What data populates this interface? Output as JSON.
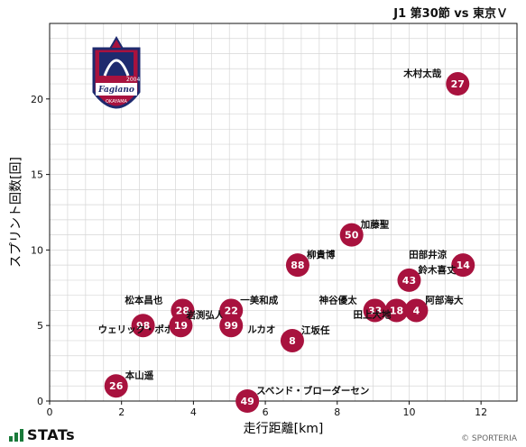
{
  "header": {
    "match": "J1 第30節 vs 東京Ｖ"
  },
  "footer": {
    "brand": "STATs",
    "copyright": "© SPORTERIA"
  },
  "emblem": {
    "year": "2004",
    "name": "Fagiano",
    "sub": "OKAYAMA"
  },
  "colors": {
    "marker": "#a8123e",
    "grid": "#d6d6d6",
    "stats_green": "#1a7a3a"
  },
  "chart_data": {
    "type": "scatter",
    "xlabel": "走行距離[km]",
    "ylabel": "スプリント回数[回]",
    "xlim": [
      0,
      13
    ],
    "ylim": [
      0,
      25
    ],
    "xticks": [
      0,
      2,
      4,
      6,
      8,
      10,
      12
    ],
    "yticks": [
      0,
      5,
      10,
      15,
      20
    ],
    "grid": true,
    "points": [
      {
        "x": 11.35,
        "y": 21,
        "num": "27",
        "name": "木村太哉",
        "lx": -60,
        "ly": -8
      },
      {
        "x": 8.4,
        "y": 11,
        "num": "50",
        "name": "加藤聖",
        "lx": 10,
        "ly": -8
      },
      {
        "x": 6.9,
        "y": 9,
        "num": "88",
        "name": "柳貴博",
        "lx": 10,
        "ly": -8
      },
      {
        "x": 11.5,
        "y": 9,
        "num": "14",
        "name": "田部井涼",
        "lx": -60,
        "ly": -8
      },
      {
        "x": 10.0,
        "y": 8,
        "num": "43",
        "name": "鈴木喜丈",
        "lx": 10,
        "ly": -8
      },
      {
        "x": 3.7,
        "y": 6,
        "num": "28",
        "name": "松本昌也",
        "lx": -64,
        "ly": -8
      },
      {
        "x": 5.05,
        "y": 6,
        "num": "22",
        "name": "一美和成",
        "lx": 10,
        "ly": -8
      },
      {
        "x": 9.05,
        "y": 6,
        "num": "33",
        "name": "神谷優太",
        "lx": -62,
        "ly": -8
      },
      {
        "x": 9.65,
        "y": 6,
        "num": "18",
        "name": "田上大地",
        "lx": -48,
        "ly": 8
      },
      {
        "x": 10.2,
        "y": 6,
        "num": "4",
        "name": "阿部海大",
        "lx": 10,
        "ly": -8
      },
      {
        "x": 2.6,
        "y": 5,
        "num": "98",
        "name": "ウェリック・ポポ",
        "lx": -50,
        "ly": 8
      },
      {
        "x": 3.65,
        "y": 5,
        "num": "19",
        "name": "岩渕弘人",
        "lx": 6,
        "ly": -8
      },
      {
        "x": 5.05,
        "y": 5,
        "num": "99",
        "name": "ルカオ",
        "lx": 18,
        "ly": 8
      },
      {
        "x": 6.75,
        "y": 4,
        "num": "8",
        "name": "江坂任",
        "lx": 10,
        "ly": -8
      },
      {
        "x": 1.85,
        "y": 1,
        "num": "26",
        "name": "本山遥",
        "lx": 10,
        "ly": -8
      },
      {
        "x": 5.5,
        "y": 0,
        "num": "49",
        "name": "スベンド・ブローダーセン",
        "lx": 10,
        "ly": -8
      }
    ]
  }
}
